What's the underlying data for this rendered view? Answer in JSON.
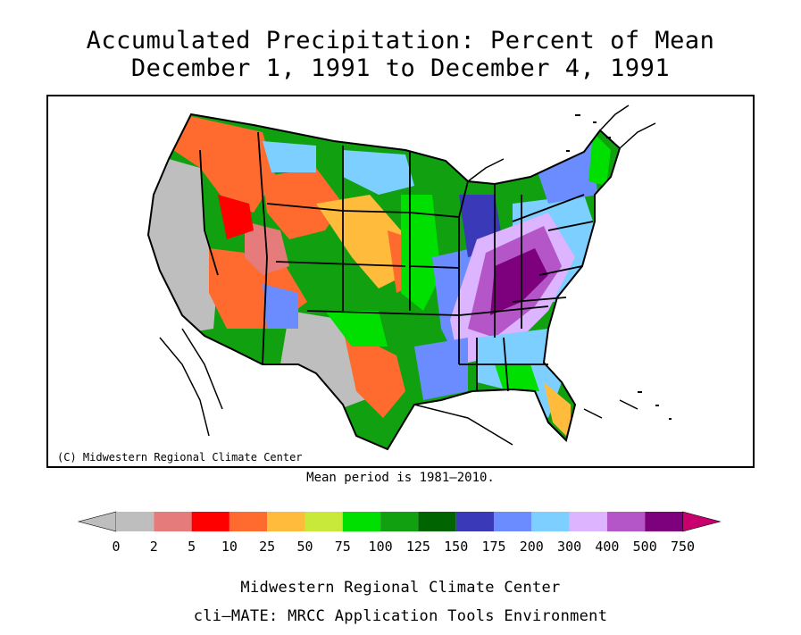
{
  "title_line1": "Accumulated Precipitation: Percent of Mean",
  "title_line2": "December 1, 1991 to December 4, 1991",
  "copyright": "(C) Midwestern Regional Climate Center",
  "mean_note": "Mean period is 1981–2010.",
  "footer_line1": "Midwestern Regional Climate Center",
  "footer_line2": "cli–MATE: MRCC Application Tools Environment",
  "legend": {
    "labels": [
      "0",
      "2",
      "5",
      "10",
      "25",
      "50",
      "75",
      "100",
      "125",
      "150",
      "175",
      "200",
      "300",
      "400",
      "500",
      "750"
    ],
    "colors": [
      "#bebebe",
      "#e57b7b",
      "#ff0000",
      "#ff6a2e",
      "#ffbb3c",
      "#c8e83a",
      "#00e000",
      "#10a010",
      "#006400",
      "#3a3ab8",
      "#6a8cff",
      "#7ccfff",
      "#dcb4ff",
      "#b456c8",
      "#7d007d"
    ],
    "low_color": "#bebebe",
    "high_color": "#c8006e"
  }
}
